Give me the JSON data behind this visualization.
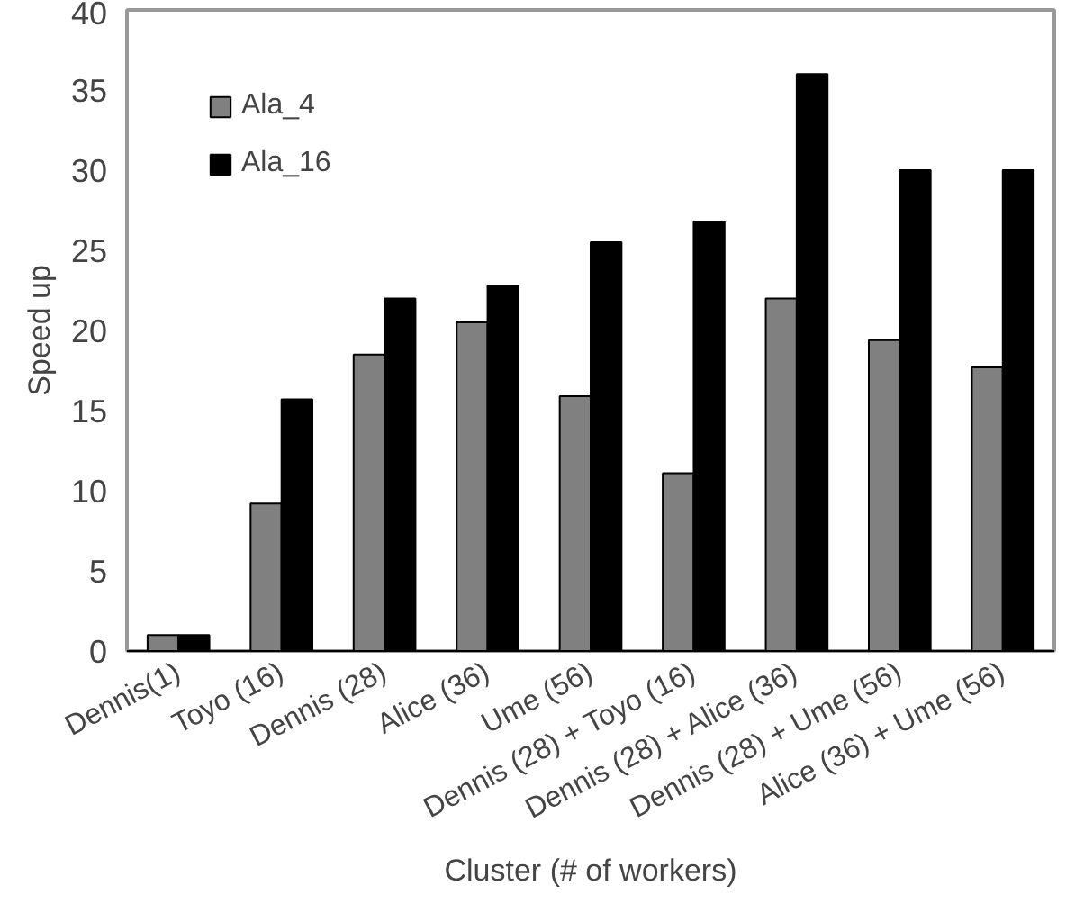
{
  "chart_data": {
    "type": "bar",
    "xlabel": "Cluster (# of workers)",
    "ylabel": "Speed up",
    "categories": [
      "Dennis(1)",
      "Toyo (16)",
      "Dennis (28)",
      "Alice (36)",
      "Ume (56)",
      "Dennis (28) + Toyo (16)",
      "Dennis (28) + Alice (36)",
      "Dennis (28) + Ume (56)",
      "Alice (36) + Ume (56)"
    ],
    "series": [
      {
        "name": "Ala_4",
        "color": "#808080",
        "values": [
          1,
          9.2,
          18.5,
          20.5,
          15.9,
          11.1,
          22,
          19.4,
          17.7
        ]
      },
      {
        "name": "Ala_16",
        "color": "#000000",
        "values": [
          1,
          15.7,
          22,
          22.8,
          25.5,
          26.8,
          36,
          30,
          30
        ]
      }
    ],
    "ylim": [
      0,
      40
    ],
    "yticks": [
      0,
      5,
      10,
      15,
      20,
      25,
      30,
      35,
      40
    ],
    "grid": false,
    "legend": "top left"
  }
}
